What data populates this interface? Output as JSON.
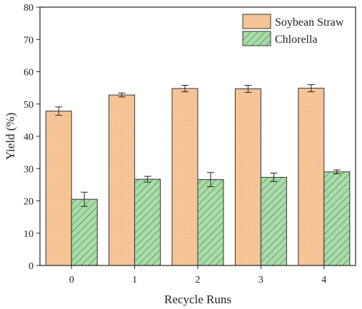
{
  "chart_data": {
    "type": "bar",
    "xlabel": "Recycle Runs",
    "ylabel": "Yield (%)",
    "ylim": [
      0,
      80
    ],
    "yticks": [
      0,
      10,
      20,
      30,
      40,
      50,
      60,
      70,
      80
    ],
    "categories": [
      "0",
      "1",
      "2",
      "3",
      "4"
    ],
    "legend_position": "top-right",
    "grid": false,
    "series": [
      {
        "name": "Soybean Straw",
        "values": [
          47.8,
          52.8,
          54.8,
          54.7,
          54.9
        ],
        "errors": [
          1.3,
          0.6,
          1.0,
          1.1,
          1.1
        ],
        "color": "#f7c699",
        "edge_color": "#333333",
        "pattern": "dots"
      },
      {
        "name": "Chlorella",
        "values": [
          20.5,
          26.7,
          26.6,
          27.3,
          29.0
        ],
        "errors": [
          2.2,
          0.9,
          2.2,
          1.3,
          0.6
        ],
        "color": "#a8dca8",
        "edge_color": "#333333",
        "pattern": "hatch"
      }
    ]
  }
}
